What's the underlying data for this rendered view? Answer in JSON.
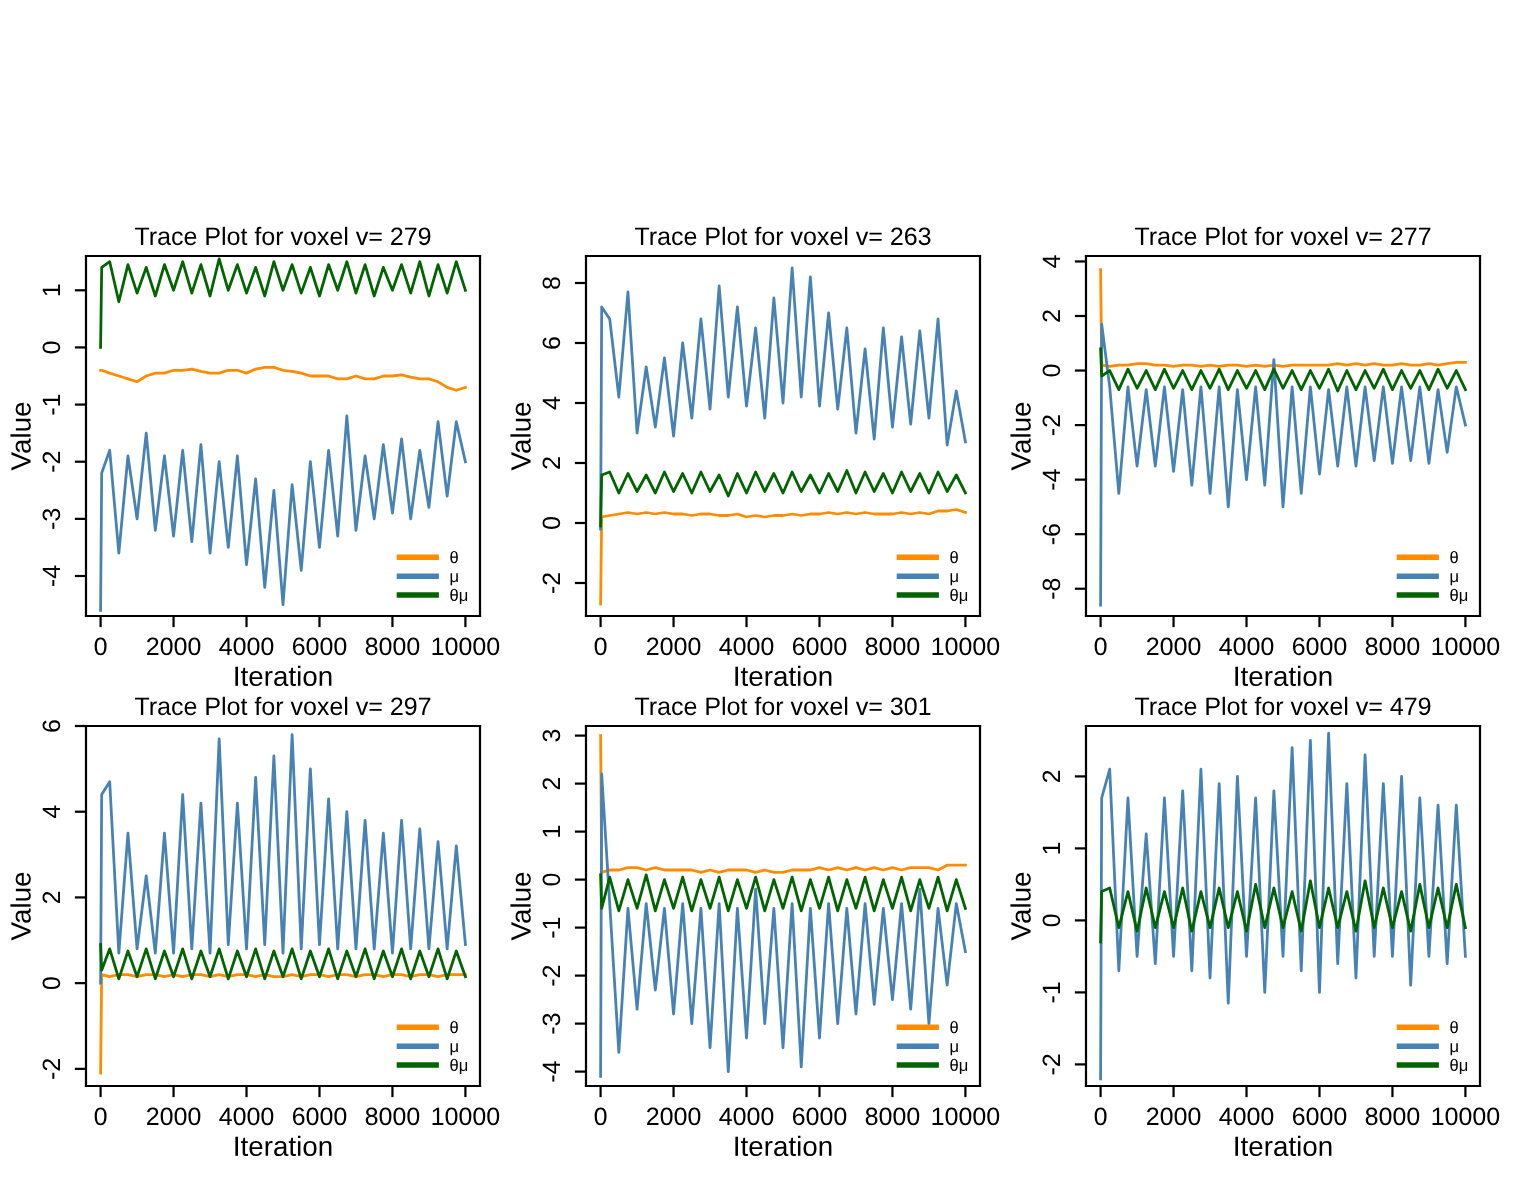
{
  "chart_data": [
    {
      "type": "line",
      "title": "Trace Plot for voxel v= 279",
      "xlabel": "Iteration",
      "ylabel": "Value",
      "legend": "bottom right",
      "x": [
        0,
        30,
        250,
        500,
        750,
        1000,
        1250,
        1500,
        1750,
        2000,
        2250,
        2500,
        2750,
        3000,
        3250,
        3500,
        3750,
        4000,
        4250,
        4500,
        4750,
        5000,
        5250,
        5500,
        5750,
        6000,
        6250,
        6500,
        6750,
        7000,
        7250,
        7500,
        7750,
        8000,
        8250,
        8500,
        8750,
        9000,
        9250,
        9500,
        9750,
        10000
      ],
      "xlim": [
        -400,
        10400
      ],
      "xticks": [
        0,
        2000,
        4000,
        6000,
        8000,
        10000
      ],
      "ylim": [
        -4.7,
        1.6
      ],
      "yticks": [
        -4,
        -3,
        -2,
        -1,
        0,
        1
      ],
      "series": [
        {
          "name": "θ",
          "color": "#ff8c00",
          "values": [
            -0.4,
            -0.4,
            -0.45,
            -0.5,
            -0.55,
            -0.6,
            -0.5,
            -0.45,
            -0.45,
            -0.4,
            -0.4,
            -0.38,
            -0.42,
            -0.45,
            -0.45,
            -0.4,
            -0.4,
            -0.45,
            -0.38,
            -0.35,
            -0.35,
            -0.4,
            -0.42,
            -0.45,
            -0.5,
            -0.5,
            -0.5,
            -0.55,
            -0.55,
            -0.5,
            -0.55,
            -0.55,
            -0.5,
            -0.5,
            -0.48,
            -0.52,
            -0.55,
            -0.55,
            -0.6,
            -0.7,
            -0.75,
            -0.7
          ]
        },
        {
          "name": "μ",
          "color": "#4682b4",
          "values": [
            -4.6,
            -2.2,
            -1.8,
            -3.6,
            -1.9,
            -3.0,
            -1.5,
            -3.2,
            -1.9,
            -3.3,
            -1.8,
            -3.4,
            -1.7,
            -3.6,
            -2.0,
            -3.5,
            -1.9,
            -3.8,
            -2.3,
            -4.2,
            -2.5,
            -4.5,
            -2.4,
            -3.9,
            -2.0,
            -3.5,
            -1.8,
            -3.3,
            -1.2,
            -3.2,
            -1.9,
            -3.0,
            -1.7,
            -2.9,
            -1.6,
            -3.0,
            -1.8,
            -2.8,
            -1.3,
            -2.6,
            -1.3,
            -2.0
          ]
        },
        {
          "name": "θμ",
          "color": "#006400",
          "values": [
            0,
            1.4,
            1.5,
            0.8,
            1.45,
            0.95,
            1.4,
            0.9,
            1.45,
            1.0,
            1.5,
            0.95,
            1.45,
            0.9,
            1.55,
            1.0,
            1.45,
            0.95,
            1.4,
            0.9,
            1.5,
            1.0,
            1.45,
            0.95,
            1.4,
            0.9,
            1.45,
            1.0,
            1.5,
            0.95,
            1.45,
            0.9,
            1.4,
            1.0,
            1.45,
            0.95,
            1.5,
            0.9,
            1.45,
            0.95,
            1.5,
            1.0
          ]
        }
      ]
    },
    {
      "type": "line",
      "title": "Trace Plot for voxel v= 263",
      "xlabel": "Iteration",
      "ylabel": "Value",
      "legend": "bottom right",
      "x": [
        0,
        30,
        250,
        500,
        750,
        1000,
        1250,
        1500,
        1750,
        2000,
        2250,
        2500,
        2750,
        3000,
        3250,
        3500,
        3750,
        4000,
        4250,
        4500,
        4750,
        5000,
        5250,
        5500,
        5750,
        6000,
        6250,
        6500,
        6750,
        7000,
        7250,
        7500,
        7750,
        8000,
        8250,
        8500,
        8750,
        9000,
        9250,
        9500,
        9750,
        10000
      ],
      "xlim": [
        -400,
        10400
      ],
      "xticks": [
        0,
        2000,
        4000,
        6000,
        8000,
        10000
      ],
      "ylim": [
        -3.1,
        8.9
      ],
      "yticks": [
        -2,
        0,
        2,
        4,
        6,
        8
      ],
      "series": [
        {
          "name": "θ",
          "color": "#ff8c00",
          "values": [
            -2.7,
            0.2,
            0.25,
            0.3,
            0.35,
            0.3,
            0.35,
            0.3,
            0.35,
            0.3,
            0.3,
            0.25,
            0.3,
            0.3,
            0.25,
            0.25,
            0.3,
            0.2,
            0.25,
            0.2,
            0.25,
            0.25,
            0.3,
            0.25,
            0.3,
            0.3,
            0.35,
            0.3,
            0.35,
            0.3,
            0.35,
            0.3,
            0.3,
            0.3,
            0.35,
            0.3,
            0.35,
            0.3,
            0.4,
            0.4,
            0.45,
            0.35
          ]
        },
        {
          "name": "μ",
          "color": "#4682b4",
          "values": [
            -0.2,
            7.2,
            6.8,
            4.2,
            7.7,
            3.0,
            5.2,
            3.2,
            5.5,
            2.9,
            6.0,
            3.5,
            6.8,
            3.8,
            7.9,
            4.2,
            7.2,
            3.9,
            6.5,
            3.5,
            7.5,
            4.0,
            8.5,
            4.2,
            8.2,
            3.9,
            7.0,
            3.8,
            6.5,
            3.0,
            5.8,
            2.8,
            6.5,
            3.2,
            6.2,
            3.3,
            6.4,
            3.5,
            6.8,
            2.6,
            4.4,
            2.7
          ]
        },
        {
          "name": "θμ",
          "color": "#006400",
          "values": [
            -0.1,
            1.6,
            1.7,
            1.0,
            1.65,
            1.05,
            1.6,
            1.0,
            1.7,
            1.05,
            1.65,
            1.0,
            1.7,
            1.05,
            1.6,
            0.9,
            1.65,
            1.0,
            1.7,
            1.05,
            1.65,
            1.0,
            1.7,
            1.05,
            1.6,
            1.0,
            1.65,
            1.05,
            1.75,
            1.0,
            1.7,
            1.05,
            1.65,
            1.0,
            1.7,
            1.05,
            1.65,
            1.0,
            1.7,
            1.05,
            1.6,
            1.0
          ]
        }
      ]
    },
    {
      "type": "line",
      "title": "Trace Plot for voxel v= 277",
      "xlabel": "Iteration",
      "ylabel": "Value",
      "legend": "bottom right",
      "x": [
        0,
        30,
        250,
        500,
        750,
        1000,
        1250,
        1500,
        1750,
        2000,
        2250,
        2500,
        2750,
        3000,
        3250,
        3500,
        3750,
        4000,
        4250,
        4500,
        4750,
        5000,
        5250,
        5500,
        5750,
        6000,
        6250,
        6500,
        6750,
        7000,
        7250,
        7500,
        7750,
        8000,
        8250,
        8500,
        8750,
        9000,
        9250,
        9500,
        9750,
        10000
      ],
      "xlim": [
        -400,
        10400
      ],
      "xticks": [
        0,
        2000,
        4000,
        6000,
        8000,
        10000
      ],
      "ylim": [
        -9.0,
        4.2
      ],
      "yticks": [
        -8,
        -6,
        -4,
        -2,
        0,
        2,
        4
      ],
      "series": [
        {
          "name": "θ",
          "color": "#ff8c00",
          "values": [
            3.7,
            0.2,
            0.15,
            0.2,
            0.2,
            0.25,
            0.25,
            0.2,
            0.2,
            0.15,
            0.2,
            0.2,
            0.15,
            0.2,
            0.15,
            0.2,
            0.2,
            0.15,
            0.2,
            0.15,
            0.2,
            0.15,
            0.2,
            0.2,
            0.2,
            0.2,
            0.2,
            0.25,
            0.2,
            0.25,
            0.2,
            0.25,
            0.2,
            0.2,
            0.25,
            0.2,
            0.2,
            0.25,
            0.2,
            0.25,
            0.3,
            0.3
          ]
        },
        {
          "name": "μ",
          "color": "#4682b4",
          "values": [
            -8.6,
            1.7,
            -0.6,
            -4.5,
            -0.6,
            -3.5,
            -0.7,
            -3.5,
            -0.6,
            -3.7,
            -0.7,
            -4.2,
            -0.6,
            -4.5,
            -0.6,
            -5.0,
            -0.7,
            -4.0,
            -0.6,
            -4.2,
            0.4,
            -5.0,
            -0.6,
            -4.5,
            -0.6,
            -3.8,
            -0.7,
            -3.5,
            -0.6,
            -3.5,
            -0.6,
            -3.3,
            -0.6,
            -3.4,
            -0.6,
            -3.3,
            -0.6,
            -3.4,
            -0.7,
            -3.0,
            -0.6,
            -2.0
          ]
        },
        {
          "name": "θμ",
          "color": "#006400",
          "values": [
            0.8,
            -0.2,
            0.0,
            -0.7,
            0.05,
            -0.65,
            0.0,
            -0.7,
            0.05,
            -0.65,
            0.0,
            -0.7,
            0.0,
            -0.65,
            0.05,
            -0.7,
            0.0,
            -0.65,
            0.0,
            -0.7,
            0.05,
            -0.65,
            0.0,
            -0.7,
            0.0,
            -0.65,
            0.05,
            -0.75,
            0.0,
            -0.7,
            0.0,
            -0.65,
            0.05,
            -0.7,
            0.0,
            -0.65,
            0.0,
            -0.7,
            0.05,
            -0.65,
            0.0,
            -0.7
          ]
        }
      ]
    },
    {
      "type": "line",
      "title": "Trace Plot for voxel v= 297",
      "xlabel": "Iteration",
      "ylabel": "Value",
      "legend": "bottom right",
      "x": [
        0,
        30,
        250,
        500,
        750,
        1000,
        1250,
        1500,
        1750,
        2000,
        2250,
        2500,
        2750,
        3000,
        3250,
        3500,
        3750,
        4000,
        4250,
        4500,
        4750,
        5000,
        5250,
        5500,
        5750,
        6000,
        6250,
        6500,
        6750,
        7000,
        7250,
        7500,
        7750,
        8000,
        8250,
        8500,
        8750,
        9000,
        9250,
        9500,
        9750,
        10000
      ],
      "xlim": [
        -400,
        10400
      ],
      "xticks": [
        0,
        2000,
        4000,
        6000,
        8000,
        10000
      ],
      "ylim": [
        -2.4,
        6.0
      ],
      "yticks": [
        -2,
        0,
        2,
        4,
        6
      ],
      "series": [
        {
          "name": "θ",
          "color": "#ff8c00",
          "values": [
            -2.1,
            0.2,
            0.15,
            0.2,
            0.2,
            0.15,
            0.2,
            0.2,
            0.15,
            0.2,
            0.15,
            0.2,
            0.2,
            0.15,
            0.2,
            0.15,
            0.2,
            0.2,
            0.15,
            0.2,
            0.15,
            0.15,
            0.2,
            0.15,
            0.2,
            0.2,
            0.15,
            0.2,
            0.2,
            0.15,
            0.2,
            0.2,
            0.15,
            0.2,
            0.2,
            0.15,
            0.2,
            0.2,
            0.15,
            0.2,
            0.2,
            0.2
          ]
        },
        {
          "name": "μ",
          "color": "#4682b4",
          "values": [
            0,
            4.4,
            4.7,
            0.7,
            3.5,
            0.8,
            2.5,
            0.7,
            3.5,
            0.7,
            4.4,
            0.8,
            4.2,
            0.7,
            5.7,
            0.9,
            4.2,
            0.8,
            4.8,
            0.9,
            5.3,
            0.7,
            5.8,
            0.8,
            5.0,
            0.9,
            4.3,
            0.8,
            4.0,
            0.8,
            3.8,
            0.8,
            3.5,
            0.7,
            3.8,
            0.8,
            3.6,
            0.8,
            3.3,
            0.8,
            3.2,
            0.9
          ]
        },
        {
          "name": "θμ",
          "color": "#006400",
          "values": [
            0.9,
            0.3,
            0.8,
            0.1,
            0.75,
            0.15,
            0.8,
            0.1,
            0.75,
            0.15,
            0.8,
            0.1,
            0.75,
            0.15,
            0.8,
            0.1,
            0.75,
            0.15,
            0.8,
            0.1,
            0.75,
            0.15,
            0.8,
            0.1,
            0.75,
            0.15,
            0.8,
            0.1,
            0.75,
            0.15,
            0.8,
            0.1,
            0.75,
            0.15,
            0.8,
            0.1,
            0.75,
            0.15,
            0.8,
            0.1,
            0.75,
            0.15
          ]
        }
      ]
    },
    {
      "type": "line",
      "title": "Trace Plot for voxel v= 301",
      "xlabel": "Iteration",
      "ylabel": "Value",
      "legend": "bottom right",
      "x": [
        0,
        30,
        250,
        500,
        750,
        1000,
        1250,
        1500,
        1750,
        2000,
        2250,
        2500,
        2750,
        3000,
        3250,
        3500,
        3750,
        4000,
        4250,
        4500,
        4750,
        5000,
        5250,
        5500,
        5750,
        6000,
        6250,
        6500,
        6750,
        7000,
        7250,
        7500,
        7750,
        8000,
        8250,
        8500,
        8750,
        9000,
        9250,
        9500,
        9750,
        10000
      ],
      "xlim": [
        -400,
        10400
      ],
      "xticks": [
        0,
        2000,
        4000,
        6000,
        8000,
        10000
      ],
      "ylim": [
        -4.3,
        3.2
      ],
      "yticks": [
        -4,
        -3,
        -2,
        -1,
        0,
        1,
        2,
        3
      ],
      "series": [
        {
          "name": "θ",
          "color": "#ff8c00",
          "values": [
            3.0,
            0.15,
            0.2,
            0.2,
            0.25,
            0.25,
            0.2,
            0.25,
            0.2,
            0.2,
            0.2,
            0.2,
            0.15,
            0.2,
            0.15,
            0.2,
            0.2,
            0.2,
            0.15,
            0.2,
            0.15,
            0.15,
            0.2,
            0.2,
            0.2,
            0.25,
            0.2,
            0.25,
            0.2,
            0.25,
            0.2,
            0.25,
            0.2,
            0.25,
            0.2,
            0.25,
            0.25,
            0.25,
            0.2,
            0.3,
            0.3,
            0.3
          ]
        },
        {
          "name": "μ",
          "color": "#4682b4",
          "values": [
            -4.1,
            2.2,
            -0.5,
            -3.6,
            -0.6,
            -2.7,
            -0.5,
            -2.3,
            -0.6,
            -2.8,
            -0.5,
            -3.0,
            -0.6,
            -3.5,
            -0.5,
            -4.0,
            -0.6,
            -3.3,
            -0.2,
            -3.0,
            -0.6,
            -3.5,
            -0.5,
            -3.9,
            -0.6,
            -3.3,
            -0.5,
            -3.0,
            -0.6,
            -2.8,
            -0.5,
            -2.6,
            -0.6,
            -2.5,
            -0.5,
            -2.7,
            -0.2,
            -3.0,
            -0.6,
            -2.2,
            -0.5,
            -1.5
          ]
        },
        {
          "name": "θμ",
          "color": "#006400",
          "values": [
            0.1,
            -0.6,
            0.05,
            -0.65,
            0.0,
            -0.6,
            0.1,
            -0.65,
            0.0,
            -0.6,
            0.05,
            -0.65,
            0.0,
            -0.6,
            0.05,
            -0.65,
            0.0,
            -0.6,
            0.05,
            -0.65,
            0.0,
            -0.6,
            0.05,
            -0.65,
            0.0,
            -0.6,
            0.05,
            -0.65,
            0.0,
            -0.6,
            0.05,
            -0.65,
            0.0,
            -0.6,
            0.05,
            -0.65,
            0.0,
            -0.6,
            0.05,
            -0.65,
            0.0,
            -0.6
          ]
        }
      ]
    },
    {
      "type": "line",
      "title": "Trace Plot for voxel v= 479",
      "xlabel": "Iteration",
      "ylabel": "Value",
      "legend": "bottom right",
      "x": [
        0,
        30,
        250,
        500,
        750,
        1000,
        1250,
        1500,
        1750,
        2000,
        2250,
        2500,
        2750,
        3000,
        3250,
        3500,
        3750,
        4000,
        4250,
        4500,
        4750,
        5000,
        5250,
        5500,
        5750,
        6000,
        6250,
        6500,
        6750,
        7000,
        7250,
        7500,
        7750,
        8000,
        8250,
        8500,
        8750,
        9000,
        9250,
        9500,
        9750,
        10000
      ],
      "xlim": [
        -400,
        10400
      ],
      "xticks": [
        0,
        2000,
        4000,
        6000,
        8000,
        10000
      ],
      "ylim": [
        -2.3,
        2.7
      ],
      "yticks": [
        -2,
        -1,
        0,
        1,
        2
      ],
      "series": [
        {
          "name": "θ",
          "color": "#ff8c00",
          "values": [
            null,
            null,
            null,
            null,
            null,
            null,
            null,
            null,
            null,
            null,
            null,
            null,
            null,
            null,
            null,
            null,
            null,
            null,
            null,
            null,
            null,
            null,
            null,
            null,
            null,
            null,
            null,
            null,
            null,
            null,
            null,
            null,
            null,
            null,
            null,
            null,
            null,
            null,
            null,
            null,
            null,
            null
          ]
        },
        {
          "name": "μ",
          "color": "#4682b4",
          "values": [
            -2.2,
            1.7,
            2.1,
            -0.7,
            1.7,
            -0.5,
            1.2,
            -0.6,
            1.7,
            -0.5,
            1.8,
            -0.7,
            2.1,
            -0.8,
            1.9,
            -1.15,
            2.0,
            -0.5,
            1.7,
            -1.0,
            1.8,
            -0.5,
            2.4,
            -0.7,
            2.5,
            -1.0,
            2.6,
            -0.6,
            1.9,
            -0.8,
            2.3,
            -0.5,
            1.9,
            -0.5,
            2.0,
            -0.9,
            1.7,
            -0.5,
            1.6,
            -0.6,
            1.6,
            -0.5
          ]
        },
        {
          "name": "θμ",
          "color": "#006400",
          "values": [
            -0.3,
            0.4,
            0.45,
            -0.1,
            0.4,
            -0.15,
            0.45,
            -0.1,
            0.4,
            -0.1,
            0.45,
            -0.15,
            0.4,
            -0.1,
            0.45,
            -0.1,
            0.4,
            -0.15,
            0.5,
            -0.1,
            0.45,
            -0.1,
            0.4,
            -0.15,
            0.55,
            -0.1,
            0.45,
            -0.1,
            0.4,
            -0.15,
            0.55,
            -0.1,
            0.45,
            -0.1,
            0.4,
            -0.15,
            0.5,
            -0.1,
            0.45,
            -0.1,
            0.5,
            -0.1
          ]
        }
      ]
    }
  ]
}
